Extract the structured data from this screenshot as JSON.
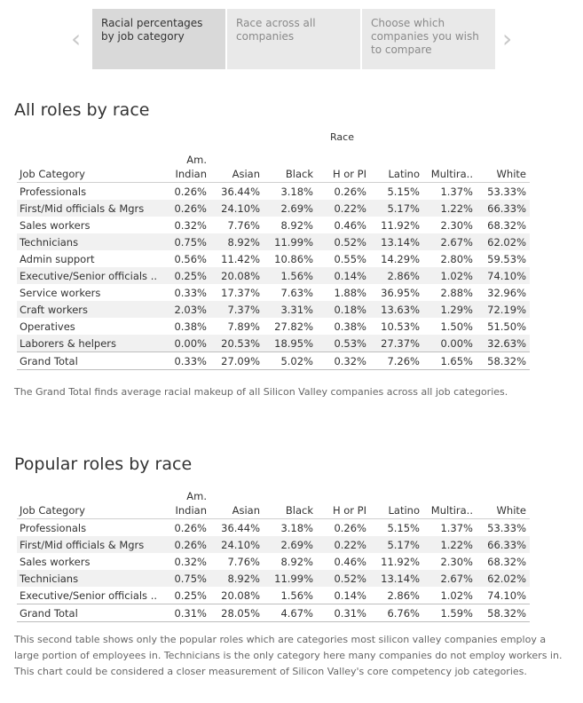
{
  "story": {
    "points": [
      "Racial percentages by job category",
      "Race across all companies",
      "Choose which companies you wish to compare"
    ]
  },
  "section1": {
    "title": "All roles by race",
    "race_header": "Race",
    "columns": [
      "Job Category",
      "Am. Indian",
      "Asian",
      "Black",
      "H or PI",
      "Latino",
      "Multira..",
      "White"
    ],
    "rows": [
      [
        "Professionals",
        "0.26%",
        "36.44%",
        "3.18%",
        "0.26%",
        "5.15%",
        "1.37%",
        "53.33%"
      ],
      [
        "First/Mid officials & Mgrs",
        "0.26%",
        "24.10%",
        "2.69%",
        "0.22%",
        "5.17%",
        "1.22%",
        "66.33%"
      ],
      [
        "Sales workers",
        "0.32%",
        "7.76%",
        "8.92%",
        "0.46%",
        "11.92%",
        "2.30%",
        "68.32%"
      ],
      [
        "Technicians",
        "0.75%",
        "8.92%",
        "11.99%",
        "0.52%",
        "13.14%",
        "2.67%",
        "62.02%"
      ],
      [
        "Admin support",
        "0.56%",
        "11.42%",
        "10.86%",
        "0.55%",
        "14.29%",
        "2.80%",
        "59.53%"
      ],
      [
        "Executive/Senior officials ..",
        "0.25%",
        "20.08%",
        "1.56%",
        "0.14%",
        "2.86%",
        "1.02%",
        "74.10%"
      ],
      [
        "Service workers",
        "0.33%",
        "17.37%",
        "7.63%",
        "1.88%",
        "36.95%",
        "2.88%",
        "32.96%"
      ],
      [
        "Craft workers",
        "2.03%",
        "7.37%",
        "3.31%",
        "0.18%",
        "13.63%",
        "1.29%",
        "72.19%"
      ],
      [
        "Operatives",
        "0.38%",
        "7.89%",
        "27.82%",
        "0.38%",
        "10.53%",
        "1.50%",
        "51.50%"
      ],
      [
        "Laborers & helpers",
        "0.00%",
        "20.53%",
        "18.95%",
        "0.53%",
        "27.37%",
        "0.00%",
        "32.63%"
      ]
    ],
    "total": [
      "Grand Total",
      "0.33%",
      "27.09%",
      "5.02%",
      "0.32%",
      "7.26%",
      "1.65%",
      "58.32%"
    ],
    "note": "The Grand Total finds average racial makeup of all Silicon Valley companies across all job categories."
  },
  "section2": {
    "title": "Popular roles by race",
    "columns": [
      "Job Category",
      "Am. Indian",
      "Asian",
      "Black",
      "H or PI",
      "Latino",
      "Multira..",
      "White"
    ],
    "rows": [
      [
        "Professionals",
        "0.26%",
        "36.44%",
        "3.18%",
        "0.26%",
        "5.15%",
        "1.37%",
        "53.33%"
      ],
      [
        "First/Mid officials & Mgrs",
        "0.26%",
        "24.10%",
        "2.69%",
        "0.22%",
        "5.17%",
        "1.22%",
        "66.33%"
      ],
      [
        "Sales workers",
        "0.32%",
        "7.76%",
        "8.92%",
        "0.46%",
        "11.92%",
        "2.30%",
        "68.32%"
      ],
      [
        "Technicians",
        "0.75%",
        "8.92%",
        "11.99%",
        "0.52%",
        "13.14%",
        "2.67%",
        "62.02%"
      ],
      [
        "Executive/Senior officials ..",
        "0.25%",
        "20.08%",
        "1.56%",
        "0.14%",
        "2.86%",
        "1.02%",
        "74.10%"
      ]
    ],
    "total": [
      "Grand Total",
      "0.31%",
      "28.05%",
      "4.67%",
      "0.31%",
      "6.76%",
      "1.59%",
      "58.32%"
    ],
    "note": "This second table shows only the popular roles which are categories most silicon valley companies employ a large portion of employees in. Technicians is the only category here many companies do not employ workers in. This chart could be considered a closer measurement of Silicon Valley's core competency job categories."
  }
}
